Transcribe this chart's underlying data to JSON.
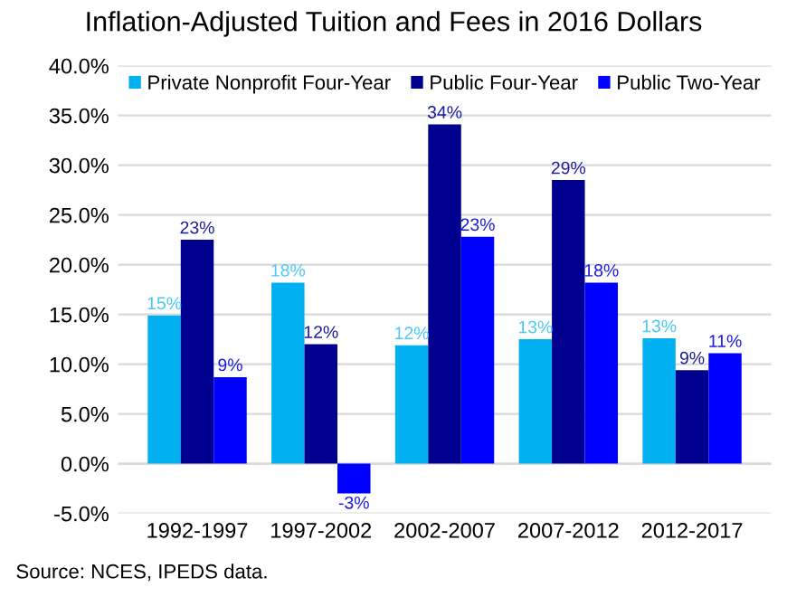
{
  "chart_data": {
    "type": "bar",
    "title": "Inflation-Adjusted Tuition and Fees in 2016 Dollars",
    "categories": [
      "1992-1997",
      "1997-2002",
      "2002-2007",
      "2007-2012",
      "2012-2017"
    ],
    "series": [
      {
        "name": "Private Nonprofit Four-Year",
        "color": "#00b0f0",
        "values": [
          14.9,
          18.2,
          11.9,
          12.5,
          12.6
        ],
        "value_labels": [
          "15%",
          "18%",
          "12%",
          "13%",
          "13%"
        ]
      },
      {
        "name": "Public Four-Year",
        "color": "#000090",
        "values": [
          22.5,
          12.0,
          34.1,
          28.5,
          9.4
        ],
        "value_labels": [
          "23%",
          "12%",
          "34%",
          "29%",
          "9%"
        ]
      },
      {
        "name": "Public Two-Year",
        "color": "#0000ff",
        "values": [
          8.7,
          -3.0,
          22.8,
          18.2,
          11.1
        ],
        "value_labels": [
          "9%",
          "-3%",
          "23%",
          "18%",
          "11%"
        ]
      }
    ],
    "ylim": [
      -5,
      40
    ],
    "yticks": [
      {
        "value": -5,
        "label": "-5.0%"
      },
      {
        "value": 0,
        "label": "0.0%"
      },
      {
        "value": 5,
        "label": "5.0%"
      },
      {
        "value": 10,
        "label": "10.0%"
      },
      {
        "value": 15,
        "label": "15.0%"
      },
      {
        "value": 20,
        "label": "20.0%"
      },
      {
        "value": 25,
        "label": "25.0%"
      },
      {
        "value": 30,
        "label": "30.0%"
      },
      {
        "value": 35,
        "label": "35.0%"
      },
      {
        "value": 40,
        "label": "40.0%"
      }
    ],
    "grid": "y",
    "legend": "top",
    "annotations": [
      "Source: NCES, IPEDS data."
    ]
  }
}
